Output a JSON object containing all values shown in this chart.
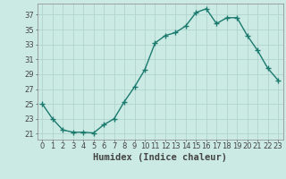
{
  "x": [
    0,
    1,
    2,
    3,
    4,
    5,
    6,
    7,
    8,
    9,
    10,
    11,
    12,
    13,
    14,
    15,
    16,
    17,
    18,
    19,
    20,
    21,
    22,
    23
  ],
  "y": [
    25.0,
    23.0,
    21.5,
    21.2,
    21.2,
    21.1,
    22.2,
    23.0,
    25.3,
    27.3,
    29.6,
    33.2,
    34.2,
    34.6,
    35.5,
    37.3,
    37.8,
    35.8,
    36.6,
    36.6,
    34.2,
    32.2,
    29.8,
    28.2
  ],
  "line_color": "#1a7a6e",
  "marker": "+",
  "marker_size": 4,
  "marker_color": "#1a7a6e",
  "bg_color": "#cceae4",
  "grid_color": "#b0d4ce",
  "tick_color": "#444444",
  "xlabel": "Humidex (Indice chaleur)",
  "xlabel_fontsize": 7.5,
  "yticks": [
    21,
    23,
    25,
    27,
    29,
    31,
    33,
    35,
    37
  ],
  "xticks": [
    0,
    1,
    2,
    3,
    4,
    5,
    6,
    7,
    8,
    9,
    10,
    11,
    12,
    13,
    14,
    15,
    16,
    17,
    18,
    19,
    20,
    21,
    22,
    23
  ],
  "xlim": [
    -0.5,
    23.5
  ],
  "ylim": [
    20.2,
    38.5
  ],
  "tick_fontsize": 6.0,
  "line_width": 1.0
}
